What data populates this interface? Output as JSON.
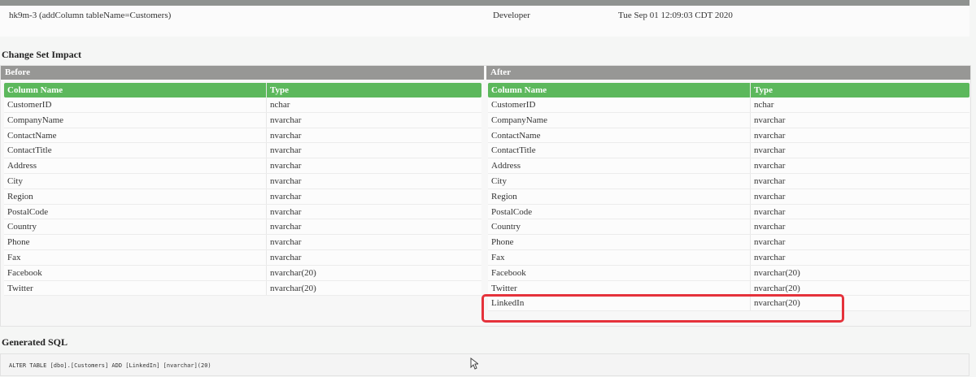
{
  "changeset": {
    "id": "hk9m-3 (addColumn tableName=Customers)",
    "author": "Developer",
    "date": "Tue Sep 01 12:09:03 CDT 2020"
  },
  "impact": {
    "title": "Change Set Impact",
    "before_label": "Before",
    "after_label": "After",
    "col_name": "Column Name",
    "col_type": "Type",
    "before": [
      [
        "CustomerID",
        "nchar"
      ],
      [
        "CompanyName",
        "nvarchar"
      ],
      [
        "ContactName",
        "nvarchar"
      ],
      [
        "ContactTitle",
        "nvarchar"
      ],
      [
        "Address",
        "nvarchar"
      ],
      [
        "City",
        "nvarchar"
      ],
      [
        "Region",
        "nvarchar"
      ],
      [
        "PostalCode",
        "nvarchar"
      ],
      [
        "Country",
        "nvarchar"
      ],
      [
        "Phone",
        "nvarchar"
      ],
      [
        "Fax",
        "nvarchar"
      ],
      [
        "Facebook",
        "nvarchar(20)"
      ],
      [
        "Twitter",
        "nvarchar(20)"
      ]
    ],
    "after": [
      [
        "CustomerID",
        "nchar"
      ],
      [
        "CompanyName",
        "nvarchar"
      ],
      [
        "ContactName",
        "nvarchar"
      ],
      [
        "ContactTitle",
        "nvarchar"
      ],
      [
        "Address",
        "nvarchar"
      ],
      [
        "City",
        "nvarchar"
      ],
      [
        "Region",
        "nvarchar"
      ],
      [
        "PostalCode",
        "nvarchar"
      ],
      [
        "Country",
        "nvarchar"
      ],
      [
        "Phone",
        "nvarchar"
      ],
      [
        "Fax",
        "nvarchar"
      ],
      [
        "Facebook",
        "nvarchar(20)"
      ],
      [
        "Twitter",
        "nvarchar(20)"
      ],
      [
        "LinkedIn",
        "nvarchar(20)"
      ]
    ]
  },
  "sql": {
    "title": "Generated SQL",
    "text": "ALTER TABLE [dbo].[Customers] ADD [LinkedIn] [nvarchar](20)"
  },
  "colors": {
    "header_green": "#5cb85c",
    "highlight": "#e5323b"
  }
}
